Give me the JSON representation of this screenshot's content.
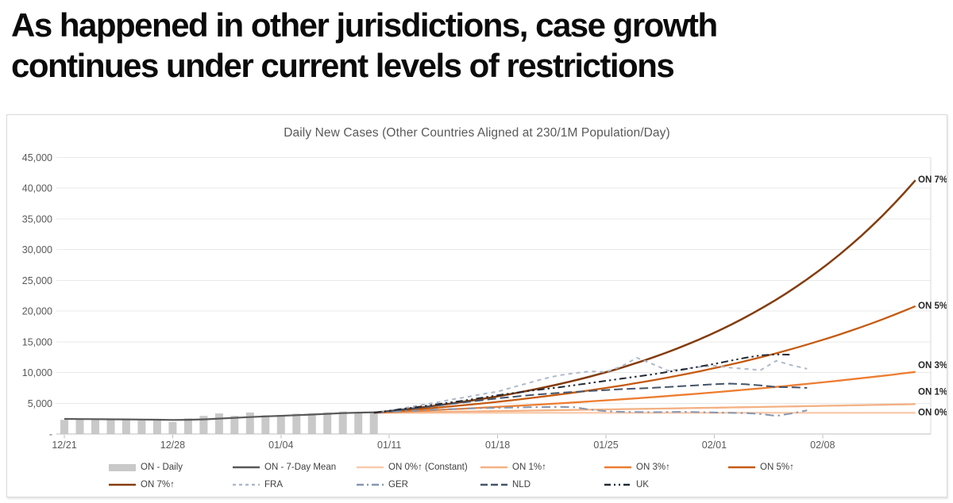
{
  "page": {
    "heading": {
      "line1": "As happened in other jurisdictions, case growth",
      "line2": "continues under current levels of restrictions"
    }
  },
  "chart": {
    "title": "Daily New Cases (Other Countries Aligned at 230/1M Population/Day)",
    "legend": {
      "rows": [
        [
          {
            "label": "ON - Daily",
            "swatch": "bar",
            "color": "#c9c9c9"
          },
          {
            "label": "ON - 7-Day Mean",
            "swatch": "line",
            "color": "#595959"
          },
          {
            "label": "ON 0%↑ (Constant)",
            "swatch": "line",
            "color": "#f8cbad"
          },
          {
            "label": "ON 1%↑",
            "swatch": "line",
            "color": "#f4b183"
          },
          {
            "label": "ON 3%↑",
            "swatch": "line",
            "color": "#ed7d31"
          },
          {
            "label": "ON 5%↑",
            "swatch": "line",
            "color": "#c55a11"
          }
        ],
        [
          {
            "label": "ON 7%↑",
            "swatch": "line",
            "color": "#843c0c"
          },
          {
            "label": "FRA",
            "swatch": "line",
            "color": "#aeb9ca",
            "dash": "4 4"
          },
          {
            "label": "GER",
            "swatch": "line",
            "color": "#8497b0",
            "dash": "9 4 2 4"
          },
          {
            "label": "NLD",
            "swatch": "line",
            "color": "#44546a",
            "dash": "9 4"
          },
          {
            "label": "UK",
            "swatch": "line",
            "color": "#222a35",
            "dash": "8 4 2 4 2 4"
          }
        ]
      ]
    }
  },
  "chart_data": {
    "type": "line",
    "title": "Daily New Cases (Other Countries Aligned at 230/1M Population/Day)",
    "ylim": [
      0,
      45000
    ],
    "grid": true,
    "legend_position": "bottom",
    "y_ticks": [
      {
        "label": "45,000",
        "value": 45000
      },
      {
        "label": "40,000",
        "value": 40000
      },
      {
        "label": "35,000",
        "value": 35000
      },
      {
        "label": "30,000",
        "value": 30000
      },
      {
        "label": "25,000",
        "value": 25000
      },
      {
        "label": "20,000",
        "value": 20000
      },
      {
        "label": "15,000",
        "value": 15000
      },
      {
        "label": "10,000",
        "value": 10000
      },
      {
        "label": "5,000",
        "value": 5000
      },
      {
        "label": "-",
        "value": 0
      }
    ],
    "x_ticks": [
      {
        "label": "12/21",
        "day": 0
      },
      {
        "label": "12/28",
        "day": 7
      },
      {
        "label": "01/04",
        "day": 14
      },
      {
        "label": "01/11",
        "day": 21
      },
      {
        "label": "01/18",
        "day": 28
      },
      {
        "label": "01/25",
        "day": 35
      },
      {
        "label": "02/01",
        "day": 42
      },
      {
        "label": "02/08",
        "day": 49
      }
    ],
    "series": [
      {
        "name": "ON - Daily",
        "role": "bar",
        "color": "#c9c9c9",
        "start_day": 0,
        "values": [
          2300,
          2320,
          2350,
          2300,
          2250,
          2300,
          2250,
          1950,
          2550,
          2950,
          3350,
          2950,
          3500,
          3050,
          3050,
          3300,
          3350,
          3500,
          3650,
          3550,
          3450
        ]
      },
      {
        "name": "ON - 7-Day Mean",
        "role": "mean",
        "color": "#595959",
        "start_day": 0,
        "values": [
          2450,
          2430,
          2410,
          2390,
          2370,
          2350,
          2330,
          2290,
          2310,
          2380,
          2500,
          2620,
          2750,
          2870,
          2960,
          3060,
          3160,
          3280,
          3400,
          3470,
          3520
        ]
      },
      {
        "name": "ON 0%↑ (Constant)",
        "role": "projection",
        "color": "#f8cbad",
        "start_day": 20,
        "end_day": 55,
        "start_value": 3450,
        "end_value": 3450,
        "end_label": "ON 0%↑",
        "label_dy": 0
      },
      {
        "name": "ON 1%↑",
        "role": "projection",
        "color": "#f4b183",
        "start_day": 20,
        "end_day": 55,
        "start_value": 3450,
        "end_value": 4850,
        "end_label": "ON 1%↑",
        "label_dy": -15
      },
      {
        "name": "ON 3%↑",
        "role": "projection",
        "color": "#ed7d31",
        "start_day": 20,
        "end_day": 55,
        "start_value": 3450,
        "end_value": 10100,
        "end_label": "ON 3%↑",
        "label_dy": -8
      },
      {
        "name": "ON 5%↑",
        "role": "projection",
        "color": "#c55a11",
        "start_day": 20,
        "end_day": 55,
        "start_value": 3480,
        "end_value": 20800,
        "end_label": "ON 5%↑",
        "label_dy": 0
      },
      {
        "name": "ON 7%↑",
        "role": "projection",
        "color": "#843c0c",
        "start_day": 20,
        "end_day": 55,
        "start_value": 3480,
        "end_value": 41300,
        "end_label": "ON 7%↑",
        "label_dy": 0
      },
      {
        "name": "FRA",
        "role": "country",
        "color": "#aeb9ca",
        "dash": "5 5",
        "points": [
          [
            20,
            3450
          ],
          [
            21,
            3800
          ],
          [
            22,
            4250
          ],
          [
            23,
            4700
          ],
          [
            24,
            5100
          ],
          [
            25,
            5600
          ],
          [
            26,
            6000
          ],
          [
            27,
            6500
          ],
          [
            28,
            6900
          ],
          [
            29,
            7600
          ],
          [
            30,
            8300
          ],
          [
            31,
            9000
          ],
          [
            32,
            9550
          ],
          [
            33,
            9900
          ],
          [
            34,
            10200
          ],
          [
            35,
            10100
          ],
          [
            36,
            11000
          ],
          [
            37,
            12400
          ],
          [
            38,
            11400
          ],
          [
            39,
            10300
          ],
          [
            40,
            10600
          ],
          [
            41,
            10900
          ],
          [
            42,
            11100
          ],
          [
            43,
            10800
          ],
          [
            44,
            10600
          ],
          [
            45,
            10400
          ],
          [
            46,
            11900
          ],
          [
            47,
            11200
          ],
          [
            48,
            10600
          ]
        ]
      },
      {
        "name": "GER",
        "role": "country",
        "color": "#8497b0",
        "dash": "11 5 2.5 5",
        "points": [
          [
            20,
            3450
          ],
          [
            22,
            3700
          ],
          [
            24,
            3950
          ],
          [
            26,
            4150
          ],
          [
            28,
            4250
          ],
          [
            30,
            4350
          ],
          [
            32,
            4400
          ],
          [
            33,
            4350
          ],
          [
            34,
            3950
          ],
          [
            35,
            3700
          ],
          [
            36,
            3600
          ],
          [
            38,
            3550
          ],
          [
            40,
            3600
          ],
          [
            42,
            3500
          ],
          [
            44,
            3400
          ],
          [
            45,
            3250
          ],
          [
            46,
            2950
          ],
          [
            47,
            3350
          ],
          [
            48,
            3850
          ]
        ]
      },
      {
        "name": "NLD",
        "role": "country",
        "color": "#44546a",
        "dash": "11 5",
        "points": [
          [
            20,
            3450
          ],
          [
            22,
            4000
          ],
          [
            24,
            4600
          ],
          [
            26,
            5200
          ],
          [
            28,
            5800
          ],
          [
            30,
            6300
          ],
          [
            32,
            6700
          ],
          [
            34,
            7000
          ],
          [
            36,
            7300
          ],
          [
            38,
            7500
          ],
          [
            40,
            7800
          ],
          [
            42,
            8100
          ],
          [
            43,
            8200
          ],
          [
            44,
            8100
          ],
          [
            45,
            7900
          ],
          [
            46,
            7650
          ],
          [
            47,
            7600
          ],
          [
            48,
            7500
          ]
        ]
      },
      {
        "name": "UK",
        "role": "country",
        "color": "#222a35",
        "dash": "9 4 2.5 4 2.5 4",
        "points": [
          [
            20,
            3450
          ],
          [
            22,
            4100
          ],
          [
            24,
            4800
          ],
          [
            26,
            5500
          ],
          [
            28,
            6300
          ],
          [
            30,
            7000
          ],
          [
            32,
            7600
          ],
          [
            34,
            8300
          ],
          [
            36,
            9000
          ],
          [
            38,
            9700
          ],
          [
            40,
            10500
          ],
          [
            42,
            11400
          ],
          [
            43,
            11900
          ],
          [
            44,
            12400
          ],
          [
            45,
            12800
          ],
          [
            46,
            12950
          ],
          [
            47,
            12900
          ]
        ]
      }
    ]
  }
}
